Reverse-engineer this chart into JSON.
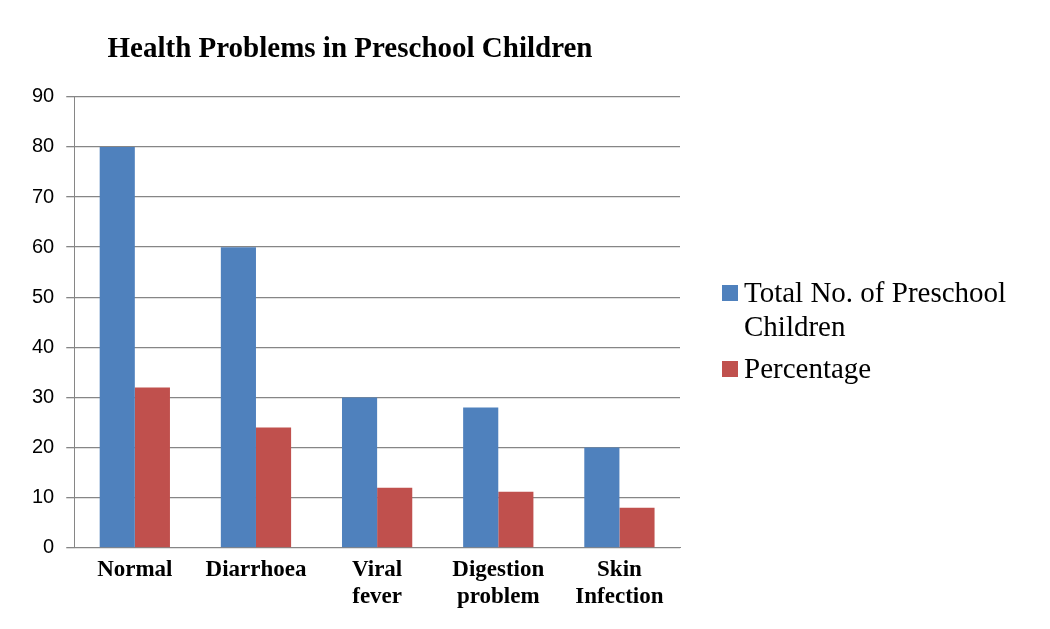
{
  "chart_data": {
    "type": "bar",
    "title": "Health Problems in Preschool Children",
    "categories": [
      "Normal",
      "Diarrhoea",
      "Viral fever",
      "Digestion problem",
      "Skin Infection"
    ],
    "series": [
      {
        "name": "Total No. of Preschool Children",
        "color": "#4f81bd",
        "values": [
          80,
          60,
          30,
          28,
          20
        ]
      },
      {
        "name": "Percentage",
        "color": "#c0504d",
        "values": [
          32,
          24,
          12,
          11.2,
          8
        ]
      }
    ],
    "ylim": [
      0,
      90
    ],
    "yticks": [
      0,
      10,
      20,
      30,
      40,
      50,
      60,
      70,
      80,
      90
    ],
    "grid": "y",
    "legend": "right"
  }
}
